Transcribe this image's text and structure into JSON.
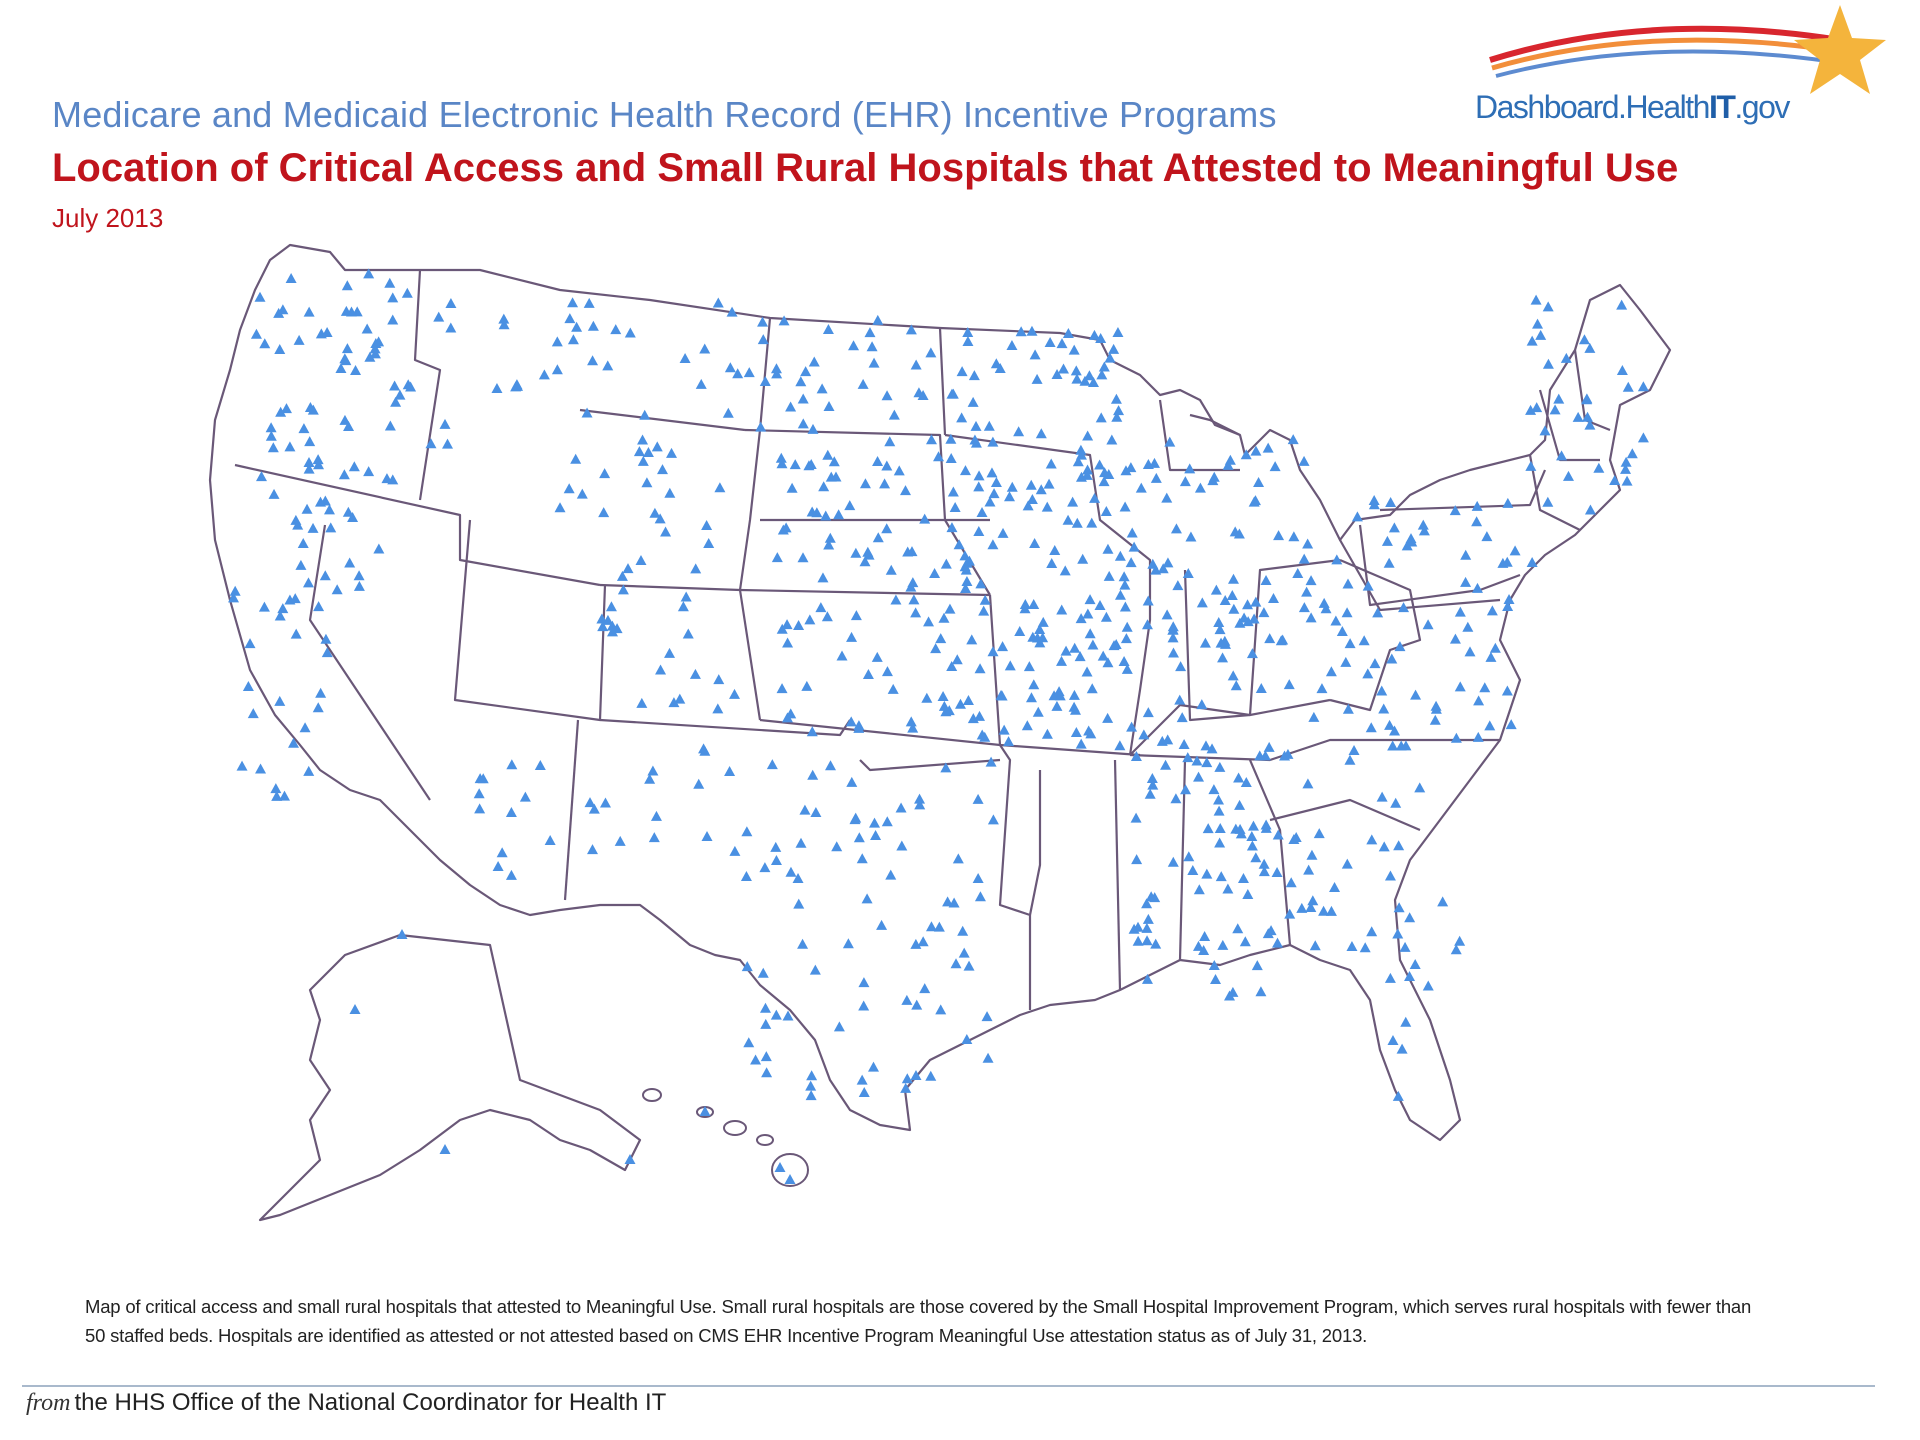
{
  "header": {
    "program_title": "Medicare and Medicaid Electronic Health Record (EHR) Incentive Programs",
    "map_title": "Location of Critical Access and Small Rural Hospitals that Attested to Meaningful Use",
    "date": "July 2013"
  },
  "logo": {
    "text_prefix": "Dashboard.Health",
    "text_bold": "IT",
    "text_suffix": ".gov",
    "icon": "star-swoosh-icon",
    "star_color": "#f4b43c",
    "swoosh_colors": [
      "#d8262e",
      "#f28e3a",
      "#5d8bd0"
    ]
  },
  "map": {
    "marker_icon": "triangle-icon",
    "marker_color": "#4a90e2",
    "border_color": "#6a5878",
    "land_fill": "#ffffff"
  },
  "caption": "Map of critical access and small rural hospitals that attested to Meaningful Use. Small rural hospitals are those covered by the Small Hospital Improvement Program, which serves rural hospitals with fewer than 50 staffed beds. Hospitals are identified as attested or not attested based on CMS EHR Incentive Program Meaningful Use attestation status as of July 31, 2013.",
  "footer": {
    "from_label": "from",
    "source": "the HHS Office of the National Coordinator for Health IT"
  }
}
